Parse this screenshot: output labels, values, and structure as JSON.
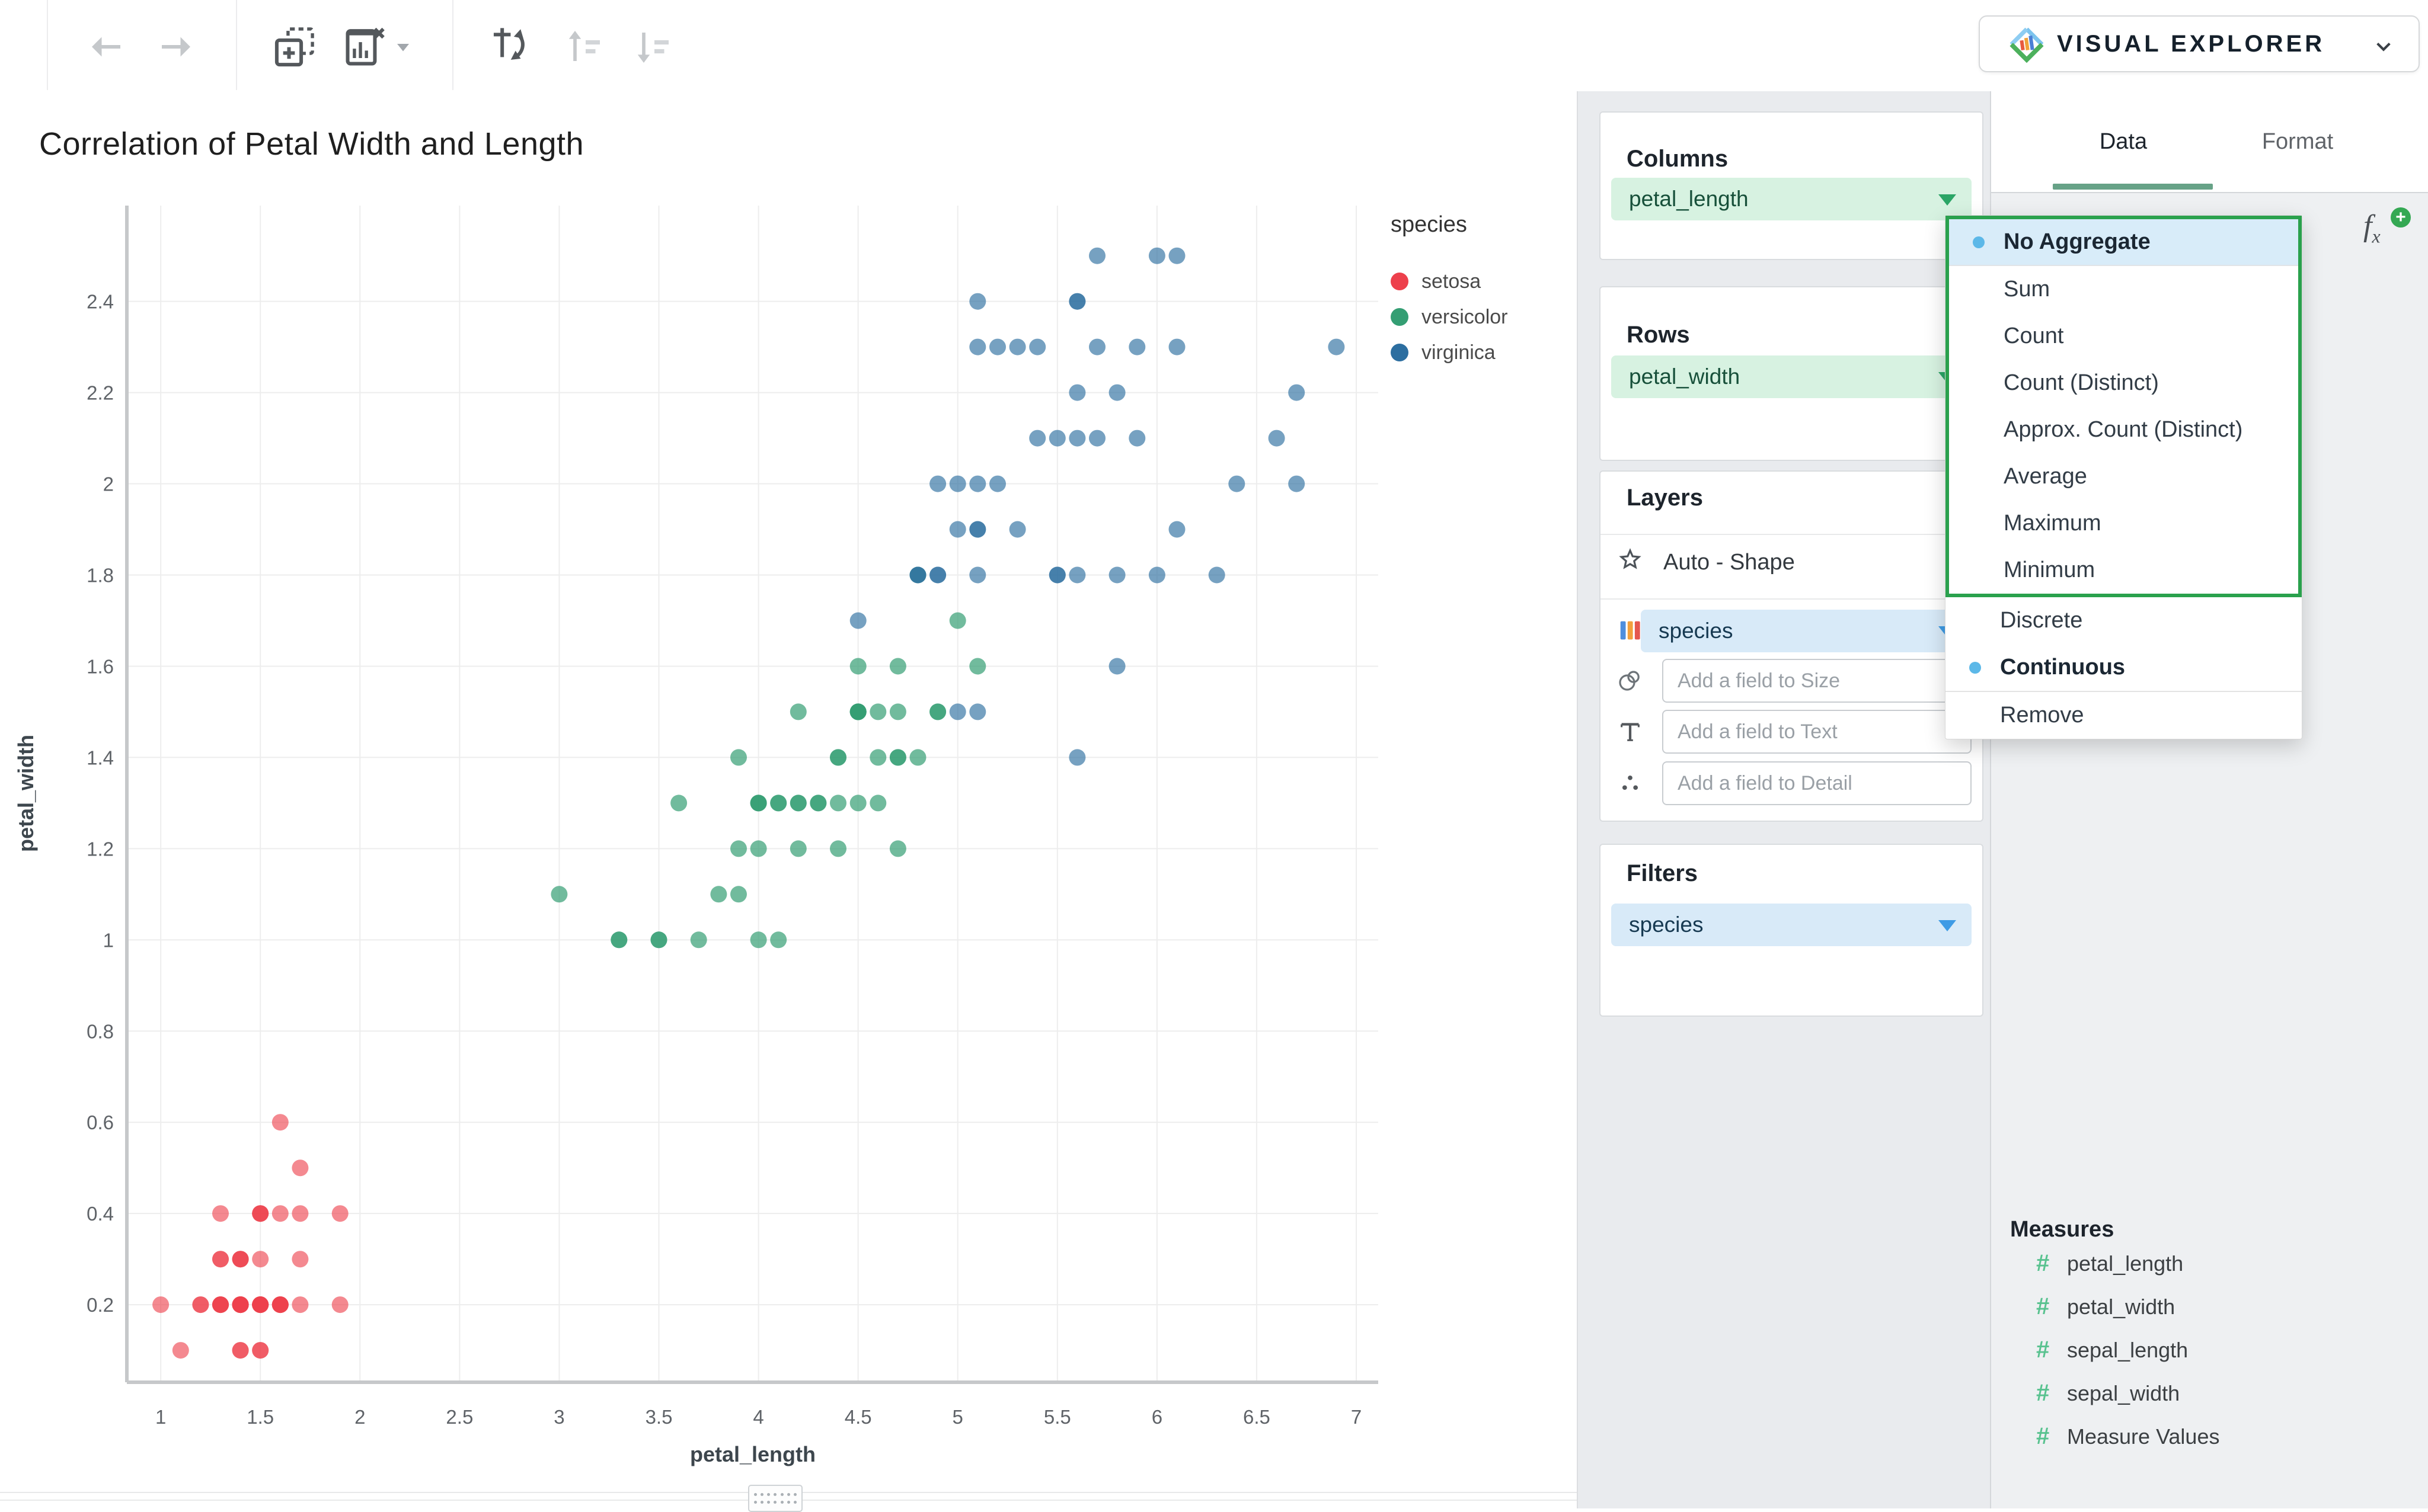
{
  "toolbar": {
    "icons": [
      "undo-arrow",
      "redo-arrow",
      "add-chart",
      "remove-chart",
      "dropdown-caret",
      "swap-axes",
      "sort-ascending",
      "sort-descending"
    ]
  },
  "brand": {
    "label": "VISUAL EXPLORER",
    "logo_icon": "visual-explorer-diamond-logo",
    "dropdown_icon": "chevron-down"
  },
  "chart": {
    "title": "Correlation of Petal Width and Length",
    "legend_title": "species",
    "legend": [
      {
        "label": "setosa",
        "color": "#ed404c"
      },
      {
        "label": "versicolor",
        "color": "#349e73"
      },
      {
        "label": "virginica",
        "color": "#2c6ea0"
      }
    ]
  },
  "chart_data": {
    "type": "scatter",
    "title": "Correlation of Petal Width and Length",
    "xlabel": "petal_length",
    "ylabel": "petal_width",
    "xlim": [
      0.83,
      7.11
    ],
    "ylim": [
      0.03,
      2.61
    ],
    "x_ticks": [
      1,
      1.5,
      2,
      2.5,
      3,
      3.5,
      4,
      4.5,
      5,
      5.5,
      6,
      6.5,
      7
    ],
    "y_ticks": [
      0.2,
      0.4,
      0.6,
      0.8,
      1,
      1.2,
      1.4,
      1.6,
      1.8,
      2,
      2.2,
      2.4
    ],
    "grid": true,
    "legend_position": "top-right",
    "point_radius": 14,
    "series": [
      {
        "name": "setosa",
        "color": "rgba(237,64,76,0.62)",
        "x": [
          1.4,
          1.4,
          1.3,
          1.5,
          1.4,
          1.7,
          1.4,
          1.5,
          1.4,
          1.5,
          1.5,
          1.6,
          1.4,
          1.1,
          1.2,
          1.5,
          1.3,
          1.4,
          1.7,
          1.5,
          1.7,
          1.5,
          1.0,
          1.7,
          1.9,
          1.6,
          1.6,
          1.5,
          1.4,
          1.6,
          1.6,
          1.5,
          1.5,
          1.4,
          1.5,
          1.2,
          1.3,
          1.4,
          1.3,
          1.5,
          1.3,
          1.3,
          1.3,
          1.6,
          1.9,
          1.4,
          1.6,
          1.4,
          1.5,
          1.4
        ],
        "y": [
          0.2,
          0.2,
          0.2,
          0.2,
          0.2,
          0.4,
          0.3,
          0.2,
          0.2,
          0.1,
          0.2,
          0.2,
          0.1,
          0.1,
          0.2,
          0.4,
          0.4,
          0.3,
          0.3,
          0.3,
          0.2,
          0.4,
          0.2,
          0.5,
          0.2,
          0.2,
          0.4,
          0.2,
          0.2,
          0.2,
          0.2,
          0.4,
          0.1,
          0.2,
          0.2,
          0.2,
          0.2,
          0.1,
          0.2,
          0.2,
          0.3,
          0.3,
          0.2,
          0.6,
          0.4,
          0.3,
          0.2,
          0.2,
          0.2,
          0.2
        ]
      },
      {
        "name": "versicolor",
        "color": "rgba(52,158,115,0.70)",
        "x": [
          4.7,
          4.5,
          4.9,
          4.0,
          4.6,
          4.5,
          4.7,
          3.3,
          4.6,
          3.9,
          3.5,
          4.2,
          4.0,
          4.7,
          3.6,
          4.4,
          4.5,
          4.1,
          4.5,
          3.9,
          4.8,
          4.0,
          4.9,
          4.7,
          4.3,
          4.4,
          4.8,
          5.0,
          4.5,
          3.5,
          3.8,
          3.7,
          3.9,
          5.1,
          4.5,
          4.5,
          4.7,
          4.4,
          4.1,
          4.0,
          4.4,
          4.6,
          4.0,
          3.3,
          4.2,
          4.2,
          4.2,
          4.3,
          3.0,
          4.1
        ],
        "y": [
          1.4,
          1.5,
          1.5,
          1.3,
          1.5,
          1.3,
          1.6,
          1.0,
          1.3,
          1.4,
          1.0,
          1.5,
          1.0,
          1.4,
          1.3,
          1.4,
          1.5,
          1.0,
          1.5,
          1.1,
          1.8,
          1.3,
          1.5,
          1.2,
          1.3,
          1.4,
          1.4,
          1.7,
          1.5,
          1.0,
          1.1,
          1.0,
          1.2,
          1.6,
          1.5,
          1.6,
          1.5,
          1.3,
          1.3,
          1.3,
          1.2,
          1.4,
          1.2,
          1.0,
          1.3,
          1.2,
          1.3,
          1.3,
          1.1,
          1.3
        ]
      },
      {
        "name": "virginica",
        "color": "rgba(44,110,160,0.65)",
        "x": [
          6.0,
          5.1,
          5.9,
          5.6,
          5.8,
          6.6,
          4.5,
          6.3,
          5.8,
          6.1,
          5.1,
          5.3,
          5.5,
          5.0,
          5.1,
          5.3,
          5.5,
          6.7,
          6.9,
          5.0,
          5.7,
          4.9,
          6.7,
          4.9,
          5.7,
          6.0,
          4.8,
          4.9,
          5.6,
          5.8,
          6.1,
          6.4,
          5.6,
          5.1,
          5.6,
          6.1,
          5.6,
          5.5,
          4.8,
          5.4,
          5.6,
          5.1,
          5.1,
          5.9,
          5.7,
          5.2,
          5.0,
          5.2,
          5.4,
          5.1
        ],
        "y": [
          2.5,
          1.9,
          2.1,
          1.8,
          2.2,
          2.1,
          1.7,
          1.8,
          1.8,
          2.5,
          2.0,
          1.9,
          2.1,
          2.0,
          2.4,
          2.3,
          1.8,
          2.2,
          2.3,
          1.5,
          2.3,
          2.0,
          2.0,
          1.8,
          2.1,
          1.8,
          1.8,
          1.8,
          2.1,
          1.6,
          1.9,
          2.0,
          2.2,
          1.5,
          1.4,
          2.3,
          2.4,
          1.8,
          1.8,
          2.1,
          2.4,
          2.3,
          1.9,
          2.3,
          2.5,
          2.3,
          1.9,
          2.0,
          2.3,
          1.8
        ]
      }
    ]
  },
  "shelves": {
    "columns": {
      "header": "Columns",
      "pill": {
        "label": "petal_length"
      }
    },
    "rows": {
      "header": "Rows",
      "pill": {
        "label": "petal_width"
      }
    },
    "layers": {
      "header": "Layers",
      "shape_row": {
        "icon": "star-icon",
        "label": "Auto - Shape"
      },
      "color_row": {
        "icon": "color-bars-icon",
        "pill": {
          "label": "species"
        }
      },
      "size_input": {
        "icon": "circles-icon",
        "placeholder": "Add a field to Size"
      },
      "text_input": {
        "icon": "text-T-icon",
        "placeholder": "Add a field to Text"
      },
      "detail_input": {
        "icon": "detail-dots-icon",
        "placeholder": "Add a field to Detail"
      }
    },
    "filters": {
      "header": "Filters",
      "pill": {
        "label": "species"
      }
    }
  },
  "aggregate_menu": {
    "annotation_color": "#2aa14d",
    "sections": [
      {
        "annotated": true,
        "items": [
          {
            "label": "No Aggregate",
            "selected": true,
            "highlighted": true,
            "dot": true
          },
          {
            "label": "Sum"
          },
          {
            "label": "Count"
          },
          {
            "label": "Count (Distinct)"
          },
          {
            "label": "Approx. Count (Distinct)"
          },
          {
            "label": "Average"
          },
          {
            "label": "Maximum"
          },
          {
            "label": "Minimum"
          }
        ]
      },
      {
        "items": [
          {
            "label": "Discrete"
          },
          {
            "label": "Continuous",
            "selected": true,
            "dot": true
          }
        ]
      },
      {
        "lined": true,
        "items": [
          {
            "label": "Remove"
          }
        ]
      }
    ]
  },
  "inspector": {
    "tabs": [
      {
        "label": "Data",
        "active": true
      },
      {
        "label": "Format",
        "active": false
      }
    ],
    "fx_icon": "formula-add-icon",
    "measures_header": "Measures",
    "measure_icon": "hash-grid-icon",
    "measures": [
      "petal_length",
      "petal_width",
      "sepal_length",
      "sepal_width",
      "Measure Values"
    ]
  }
}
